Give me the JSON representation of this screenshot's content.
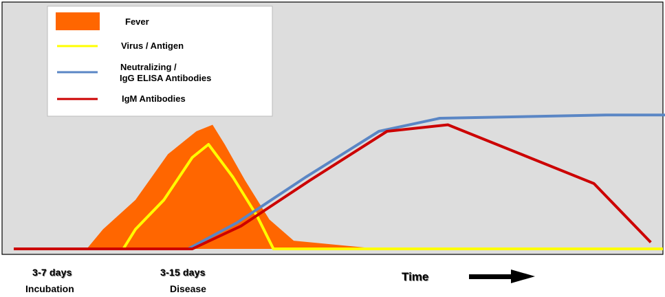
{
  "chart_data": {
    "type": "area",
    "legend_position": "top-left",
    "series": [
      {
        "name": "Fever",
        "kind": "area",
        "color": "#ff6600",
        "points": [
          [
            0,
            0
          ],
          [
            18,
            0
          ],
          [
            22,
            0.6
          ],
          [
            30,
            1.5
          ],
          [
            38,
            2.9
          ],
          [
            45,
            3.6
          ],
          [
            49,
            3.8
          ],
          [
            52,
            3.2
          ],
          [
            57,
            2.1
          ],
          [
            63,
            0.9
          ],
          [
            69,
            0.25
          ],
          [
            90,
            0
          ],
          [
            163,
            0
          ]
        ]
      },
      {
        "name": "Virus / Antigen",
        "color": "#ffff00",
        "points": [
          [
            0,
            0
          ],
          [
            27,
            0
          ],
          [
            30,
            0.6
          ],
          [
            37,
            1.5
          ],
          [
            44,
            2.8
          ],
          [
            48,
            3.2
          ],
          [
            54,
            2.2
          ],
          [
            60,
            1.0
          ],
          [
            64,
            0
          ],
          [
            160,
            0
          ]
        ]
      },
      {
        "name": "Neutralizing /\nIgG ELISA Antibodies",
        "color": "#5a86c5",
        "points": [
          [
            0,
            0
          ],
          [
            43,
            0
          ],
          [
            55,
            0.8
          ],
          [
            72,
            2.2
          ],
          [
            90,
            3.6
          ],
          [
            105,
            4.0
          ],
          [
            146,
            4.1
          ],
          [
            163,
            4.1
          ]
        ]
      },
      {
        "name": "IgM Antibodies",
        "color": "#cc0000",
        "points": [
          [
            0,
            0
          ],
          [
            44,
            0
          ],
          [
            56,
            0.7
          ],
          [
            73,
            2.1
          ],
          [
            92,
            3.6
          ],
          [
            107,
            3.8
          ],
          [
            143,
            2.0
          ],
          [
            157,
            0.2
          ]
        ]
      }
    ]
  },
  "labels": {
    "incubation_days": "3-7 days",
    "incubation": "Incubation",
    "disease_days": "3-15 days",
    "disease": "Disease",
    "time": "Time"
  }
}
